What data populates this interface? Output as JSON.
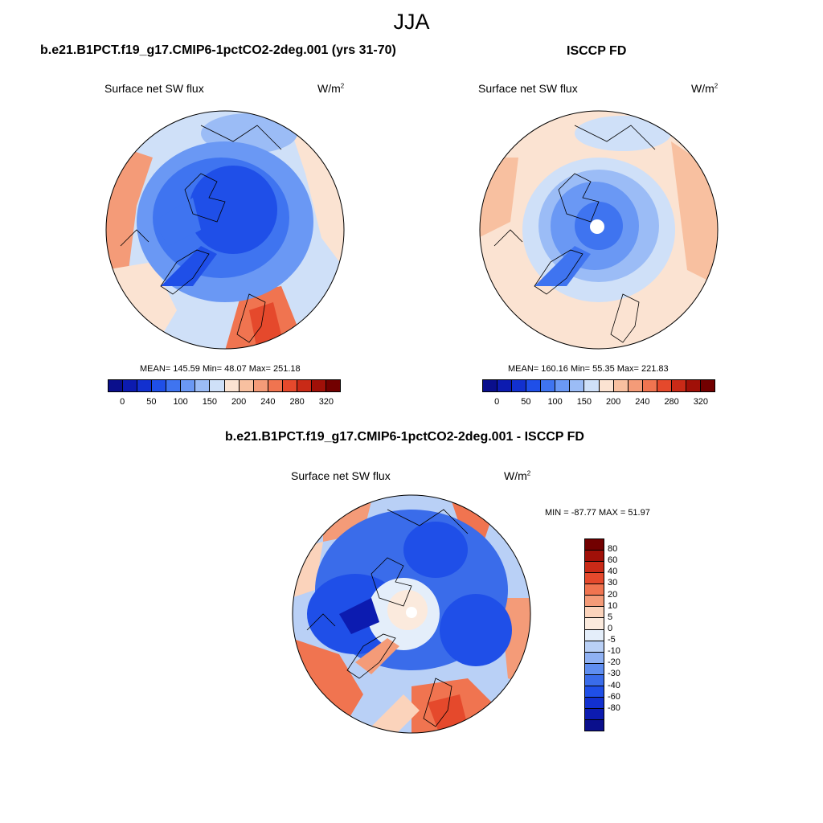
{
  "season": "JJA",
  "panels": {
    "model": {
      "title": "b.e21.B1PCT.f19_g17.CMIP6-1pctCO2-2deg.001 (yrs 31-70)",
      "variable": "Surface net SW flux",
      "units_base": "W/m",
      "units_exp": "2",
      "stats": "MEAN= 145.59  Min=  48.07  Max= 251.18"
    },
    "obs": {
      "title": "ISCCP FD",
      "variable": "Surface net SW flux",
      "units_base": "W/m",
      "units_exp": "2",
      "stats": "MEAN= 160.16  Min=  55.35  Max= 221.83"
    },
    "diff": {
      "title": "b.e21.B1PCT.f19_g17.CMIP6-1pctCO2-2deg.001 - ISCCP FD",
      "variable": "Surface net SW flux",
      "units_base": "W/m",
      "units_exp": "2",
      "stats": "MIN = -87.77 MAX =  51.97"
    }
  },
  "colorbar_top": {
    "colors": [
      "#0a0f8c",
      "#0c1bb0",
      "#1230cf",
      "#1f4fe8",
      "#3f74f0",
      "#6a98f4",
      "#9bbcf6",
      "#cfe0f8",
      "#fbe3d2",
      "#f8c0a0",
      "#f49b78",
      "#f07450",
      "#e5492c",
      "#c92a17",
      "#a01008",
      "#720000"
    ],
    "tick_labels": [
      "0",
      "50",
      "100",
      "150",
      "200",
      "240",
      "280",
      "320"
    ]
  },
  "colorbar_diff": {
    "colors": [
      "#720000",
      "#a01008",
      "#c92a17",
      "#e5492c",
      "#f07450",
      "#f49b78",
      "#fbd3bb",
      "#fbeadd",
      "#e4eefa",
      "#b9d0f6",
      "#8fb1f3",
      "#5f8ef0",
      "#3a6cea",
      "#1f4fe8",
      "#1230cf",
      "#0c1bb0",
      "#0a0f8c"
    ],
    "tick_labels": [
      "80",
      "60",
      "40",
      "30",
      "20",
      "10",
      "5",
      "0",
      "-5",
      "-10",
      "-20",
      "-30",
      "-40",
      "-60",
      "-80"
    ]
  }
}
